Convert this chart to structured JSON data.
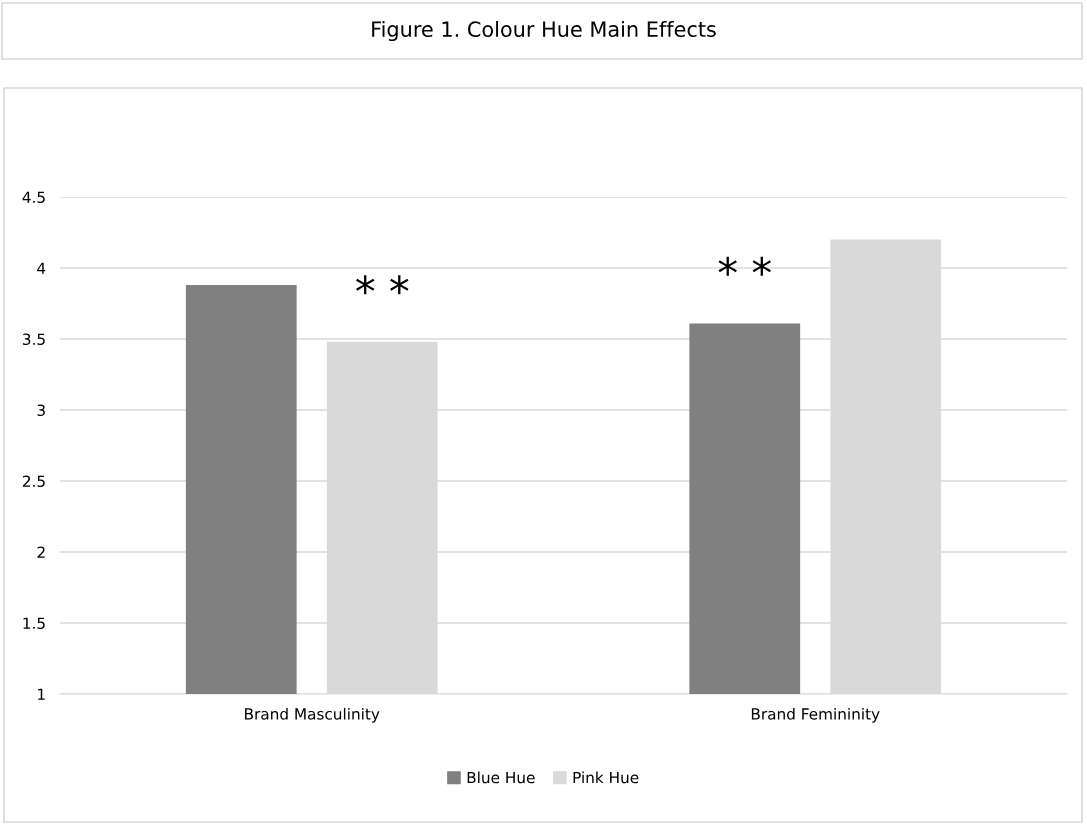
{
  "chart_data": {
    "type": "bar",
    "title": "Figure 1. Colour Hue Main Effects",
    "categories": [
      "Brand Masculinity",
      "Brand Femininity"
    ],
    "series": [
      {
        "name": "Blue Hue",
        "color": "#808080",
        "values": [
          3.88,
          3.61
        ]
      },
      {
        "name": "Pink Hue",
        "color": "#d9d9d9",
        "values": [
          3.48,
          4.2
        ]
      }
    ],
    "ylim": [
      1,
      4.5
    ],
    "yticks": [
      1,
      1.5,
      2,
      2.5,
      3,
      3.5,
      4,
      4.5
    ],
    "grid": "y",
    "legend": "bottom",
    "annotations": [
      "* *",
      "* *"
    ]
  }
}
